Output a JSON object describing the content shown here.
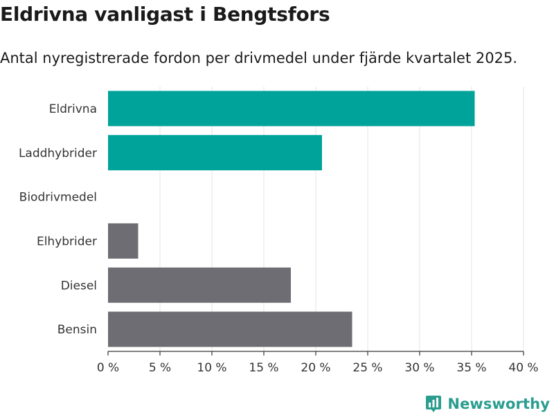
{
  "header": {
    "title": "Eldrivna vanligast i Bengtsfors",
    "subtitle": "Antal nyregistrerade fordon per drivmedel under fjärde kvartalet 2025."
  },
  "branding": {
    "logo_text": "Newsworthy",
    "logo_icon": "bar-chart-icon",
    "color": "#2a9d8f"
  },
  "chart_data": {
    "type": "bar",
    "orientation": "horizontal",
    "categories": [
      "Eldrivna",
      "Laddhybrider",
      "Biodrivmedel",
      "Elhybrider",
      "Diesel",
      "Bensin"
    ],
    "values": [
      35.3,
      20.6,
      0,
      2.9,
      17.6,
      23.5
    ],
    "colors": [
      "#00a39a",
      "#00a39a",
      "#6e6d73",
      "#6e6d73",
      "#6e6d73",
      "#6e6d73"
    ],
    "xlim": [
      0,
      40
    ],
    "ticks": [
      0,
      5,
      10,
      15,
      20,
      25,
      30,
      35,
      40
    ],
    "tick_labels": [
      "0 %",
      "5 %",
      "10 %",
      "15 %",
      "20 %",
      "25 %",
      "30 %",
      "35 %",
      "40 %"
    ],
    "grid": true,
    "xlabel": "",
    "ylabel": ""
  }
}
